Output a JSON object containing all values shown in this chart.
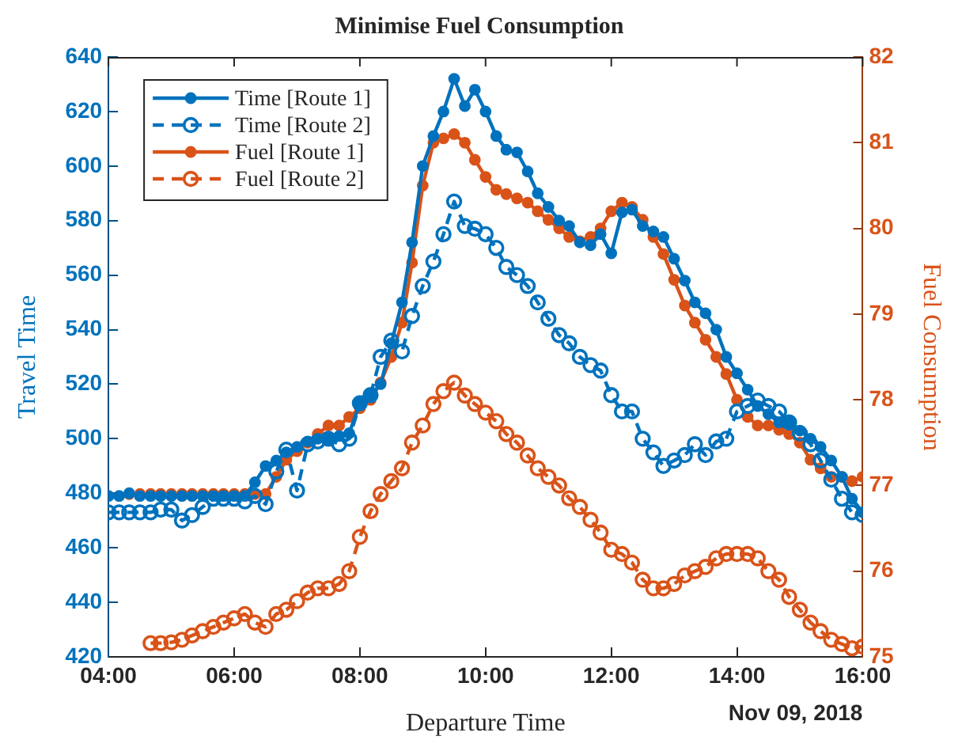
{
  "chart_data": {
    "type": "line",
    "title": "Minimise Fuel Consumption",
    "xlabel": "Departure Time",
    "ylabel": "Travel Time",
    "y2label": "Fuel Consumption",
    "annotations": [
      "Nov 09, 2018"
    ],
    "xlim": [
      4,
      16
    ],
    "xticks": [
      {
        "value": 4,
        "label": "04:00"
      },
      {
        "value": 6,
        "label": "06:00"
      },
      {
        "value": 8,
        "label": "08:00"
      },
      {
        "value": 10,
        "label": "10:00"
      },
      {
        "value": 12,
        "label": "12:00"
      },
      {
        "value": 14,
        "label": "14:00"
      },
      {
        "value": 16,
        "label": "16:00"
      }
    ],
    "ylim": [
      420,
      640
    ],
    "yticks": [
      420,
      440,
      460,
      480,
      500,
      520,
      540,
      560,
      580,
      600,
      620,
      640
    ],
    "y2lim": [
      75,
      82
    ],
    "y2ticks": [
      75,
      76,
      77,
      78,
      79,
      80,
      81,
      82
    ],
    "grid": false,
    "legend": "top left",
    "marker": "circle",
    "series": [
      {
        "name": "Time [Route 1]",
        "color": "#0072bd",
        "line_style": "solid",
        "x": [
          4,
          4.17,
          4.33,
          4.5,
          4.67,
          4.83,
          5,
          5.17,
          5.33,
          5.5,
          5.67,
          5.83,
          6,
          6.17,
          6.33,
          6.5,
          6.67,
          6.83,
          7,
          7.17,
          7.33,
          7.5,
          7.67,
          7.83,
          8,
          8.17,
          8.33,
          8.5,
          8.67,
          8.83,
          9,
          9.17,
          9.33,
          9.5,
          9.67,
          9.83,
          10,
          10.17,
          10.33,
          10.5,
          10.67,
          10.83,
          11,
          11.17,
          11.33,
          11.5,
          11.67,
          11.83,
          12,
          12.17,
          12.33,
          12.5,
          12.67,
          12.83,
          13,
          13.17,
          13.33,
          13.5,
          13.67,
          13.83,
          14,
          14.17,
          14.33,
          14.5,
          14.67,
          14.83,
          15,
          15.17,
          15.33,
          15.5,
          15.67,
          15.83,
          16
        ],
        "values": [
          479,
          479,
          480,
          479,
          479,
          479,
          479,
          479,
          479,
          479,
          479,
          479,
          479,
          479,
          484,
          490,
          492,
          495,
          497,
          499,
          500,
          500,
          501,
          502,
          513,
          516,
          520,
          535,
          550,
          572,
          600,
          611,
          620,
          632,
          622,
          628,
          620,
          611,
          606,
          605,
          598,
          590,
          585,
          580,
          578,
          572,
          571,
          575,
          568,
          583,
          584,
          578,
          576,
          574,
          566,
          558,
          550,
          546,
          540,
          530,
          524,
          518,
          512,
          509,
          506,
          506,
          503,
          500,
          497,
          492,
          486,
          478,
          473
        ]
      },
      {
        "name": "Time [Route 2]",
        "color": "#0072bd",
        "line_style": "dashed",
        "x": [
          4,
          4.17,
          4.33,
          4.5,
          4.67,
          4.83,
          5,
          5.17,
          5.33,
          5.5,
          5.67,
          5.83,
          6,
          6.17,
          6.33,
          6.5,
          6.67,
          6.83,
          7,
          7.17,
          7.33,
          7.5,
          7.67,
          7.83,
          8,
          8.17,
          8.33,
          8.5,
          8.67,
          8.83,
          9,
          9.17,
          9.33,
          9.5,
          9.67,
          9.83,
          10,
          10.17,
          10.33,
          10.5,
          10.67,
          10.83,
          11,
          11.17,
          11.33,
          11.5,
          11.67,
          11.83,
          12,
          12.17,
          12.33,
          12.5,
          12.67,
          12.83,
          13,
          13.17,
          13.33,
          13.5,
          13.67,
          13.83,
          14,
          14.17,
          14.33,
          14.5,
          14.67,
          14.83,
          15,
          15.17,
          15.33,
          15.5,
          15.67,
          15.83,
          16
        ],
        "values": [
          473,
          473,
          473,
          473,
          473,
          474,
          474,
          470,
          472,
          475,
          478,
          478,
          478,
          477,
          479,
          476,
          488,
          496,
          481,
          498,
          499,
          500,
          498,
          500,
          513,
          516,
          530,
          536,
          532,
          545,
          556,
          565,
          575,
          587,
          578,
          577,
          575,
          570,
          563,
          560,
          556,
          550,
          544,
          538,
          535,
          530,
          527,
          525,
          516,
          510,
          510,
          500,
          495,
          490,
          492,
          494,
          498,
          494,
          499,
          500,
          510,
          512,
          514,
          512,
          510,
          506,
          502,
          498,
          492,
          485,
          478,
          473,
          472
        ]
      },
      {
        "name": "Fuel [Route 1]",
        "color": "#d95319",
        "line_style": "solid",
        "axis": "y2",
        "x": [
          4.33,
          4.5,
          4.67,
          4.83,
          5,
          5.17,
          5.33,
          5.5,
          5.67,
          5.83,
          6,
          6.17,
          6.33,
          6.5,
          6.67,
          6.83,
          7,
          7.17,
          7.33,
          7.5,
          7.67,
          7.83,
          8,
          8.17,
          8.33,
          8.5,
          8.67,
          8.83,
          9,
          9.17,
          9.33,
          9.5,
          9.67,
          9.83,
          10,
          10.17,
          10.33,
          10.5,
          10.67,
          10.83,
          11,
          11.17,
          11.33,
          11.5,
          11.67,
          11.83,
          12,
          12.17,
          12.33,
          12.5,
          12.67,
          12.83,
          13,
          13.17,
          13.33,
          13.5,
          13.67,
          13.83,
          14,
          14.17,
          14.33,
          14.5,
          14.67,
          14.83,
          15,
          15.17,
          15.33,
          15.5,
          15.67,
          15.83,
          16
        ],
        "values": [
          76.9,
          76.9,
          76.9,
          76.9,
          76.9,
          76.9,
          76.9,
          76.9,
          76.9,
          76.9,
          76.9,
          76.9,
          76.9,
          76.9,
          77.1,
          77.3,
          77.4,
          77.5,
          77.6,
          77.7,
          77.7,
          77.8,
          77.9,
          78.0,
          78.2,
          78.5,
          78.9,
          79.6,
          80.5,
          81.0,
          81.05,
          81.1,
          81.0,
          80.8,
          80.6,
          80.45,
          80.4,
          80.35,
          80.3,
          80.2,
          80.1,
          80.0,
          79.9,
          79.85,
          79.9,
          80.0,
          80.2,
          80.3,
          80.25,
          80.1,
          79.9,
          79.7,
          79.4,
          79.1,
          78.9,
          78.7,
          78.5,
          78.3,
          78.0,
          77.8,
          77.7,
          77.7,
          77.65,
          77.6,
          77.5,
          77.3,
          77.2,
          77.1,
          77.1,
          77.05,
          77.1
        ]
      },
      {
        "name": "Fuel [Route 2]",
        "color": "#d95319",
        "line_style": "dashed",
        "axis": "y2",
        "x": [
          4.67,
          4.83,
          5,
          5.17,
          5.33,
          5.5,
          5.67,
          5.83,
          6,
          6.17,
          6.33,
          6.5,
          6.67,
          6.83,
          7,
          7.17,
          7.33,
          7.5,
          7.67,
          7.83,
          8,
          8.17,
          8.33,
          8.5,
          8.67,
          8.83,
          9,
          9.17,
          9.33,
          9.5,
          9.67,
          9.83,
          10,
          10.17,
          10.33,
          10.5,
          10.67,
          10.83,
          11,
          11.17,
          11.33,
          11.5,
          11.67,
          11.83,
          12,
          12.17,
          12.33,
          12.5,
          12.67,
          12.83,
          13,
          13.17,
          13.33,
          13.5,
          13.67,
          13.83,
          14,
          14.17,
          14.33,
          14.5,
          14.67,
          14.83,
          15,
          15.17,
          15.33,
          15.5,
          15.67,
          15.83,
          16
        ],
        "values": [
          75.16,
          75.16,
          75.17,
          75.2,
          75.25,
          75.3,
          75.35,
          75.4,
          75.45,
          75.5,
          75.4,
          75.35,
          75.5,
          75.55,
          75.65,
          75.75,
          75.8,
          75.8,
          75.85,
          76.0,
          76.4,
          76.7,
          76.9,
          77.05,
          77.2,
          77.5,
          77.7,
          77.95,
          78.1,
          78.2,
          78.05,
          77.95,
          77.85,
          77.75,
          77.6,
          77.5,
          77.35,
          77.2,
          77.1,
          77.0,
          76.85,
          76.75,
          76.6,
          76.45,
          76.25,
          76.2,
          76.1,
          75.9,
          75.8,
          75.8,
          75.85,
          75.95,
          76.0,
          76.05,
          76.15,
          76.2,
          76.2,
          76.2,
          76.15,
          76.0,
          75.9,
          75.7,
          75.55,
          75.4,
          75.3,
          75.2,
          75.15,
          75.1,
          75.12
        ]
      }
    ]
  }
}
